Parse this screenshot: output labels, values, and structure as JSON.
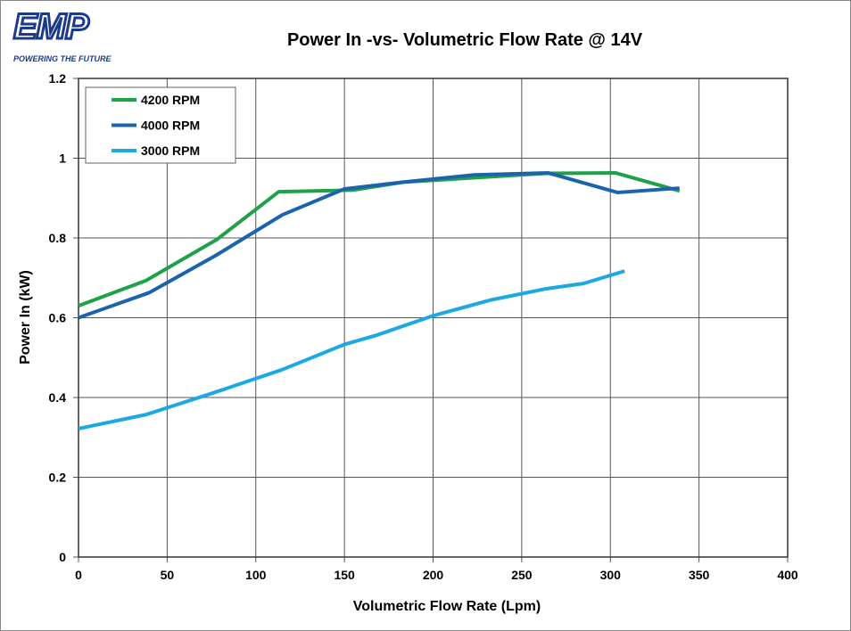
{
  "logo": {
    "text": "EMP",
    "tagline": "POWERING THE FUTURE"
  },
  "chart_data": {
    "type": "line",
    "title": "Power In -vs- Volumetric Flow Rate @ 14V",
    "xlabel": "Volumetric Flow Rate (Lpm)",
    "ylabel": "Power In (kW)",
    "xlim": [
      0,
      400
    ],
    "ylim": [
      0,
      1.2
    ],
    "xticks": [
      0,
      50,
      100,
      150,
      200,
      250,
      300,
      350,
      400
    ],
    "yticks": [
      0,
      0.2,
      0.4,
      0.6,
      0.8,
      1,
      1.2
    ],
    "ytick_labels": [
      "0",
      "0.2",
      "0.4",
      "0.6",
      "0.8",
      "1",
      "1.2"
    ],
    "grid": true,
    "legend": "top-left",
    "series": [
      {
        "name": "4200 RPM",
        "color": "#1fa14a",
        "x": [
          0,
          38,
          78,
          113,
          155,
          183,
          264,
          303,
          339
        ],
        "y": [
          0.63,
          0.693,
          0.796,
          0.916,
          0.92,
          0.94,
          0.962,
          0.963,
          0.918
        ]
      },
      {
        "name": "4000 RPM",
        "color": "#1b64ad",
        "x": [
          0,
          40,
          77,
          115,
          150,
          183,
          223,
          265,
          304,
          339
        ],
        "y": [
          0.6,
          0.663,
          0.755,
          0.858,
          0.923,
          0.94,
          0.958,
          0.963,
          0.914,
          0.925
        ]
      },
      {
        "name": "3000 RPM",
        "color": "#1ca8e0",
        "x": [
          0,
          38,
          77,
          115,
          150,
          168,
          200,
          233,
          263,
          285,
          308
        ],
        "y": [
          0.322,
          0.357,
          0.413,
          0.47,
          0.533,
          0.556,
          0.605,
          0.645,
          0.672,
          0.686,
          0.717
        ]
      }
    ]
  }
}
